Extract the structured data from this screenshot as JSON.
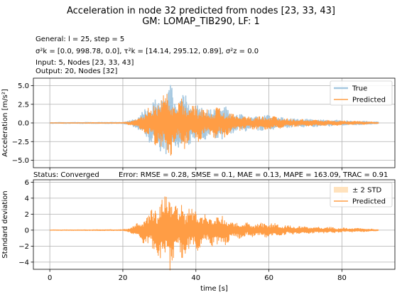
{
  "title": "Acceleration in node 32 predicted from nodes [23, 33, 43]",
  "subtitle": "GM: LOMAP_TIB290, LF: 1",
  "info": {
    "general": "General: l = 25, step = 5",
    "sigma": "σ²k = [0.0, 998.78, 0.0], τ²k = [14.14, 295.12, 0.89], σ²z = 0.0",
    "input": "Input: 5, Nodes [23, 33, 43]",
    "output": "Output: 20, Nodes [32]"
  },
  "status_left": "Status: Converged",
  "status_right": "Error: RMSE = 0.28, SMSE = 0.1, MAE = 0.13, MAPE = 163.09, TRAC = 0.91",
  "colors": {
    "true": "#a6c8e0",
    "predicted": "#ff9d45",
    "std": "#ffe2bd",
    "grid": "#b0b0b0"
  },
  "chart_data": [
    {
      "type": "line",
      "xlim": [
        -4.5,
        94.5
      ],
      "ylim": [
        -6.0,
        6.0
      ],
      "yticks": [
        -5.0,
        -2.5,
        0.0,
        2.5,
        5.0
      ],
      "yticklabels": [
        "−5.0",
        "−2.5",
        "0.0",
        "2.5",
        "5.0"
      ],
      "xticks": [
        0,
        20,
        40,
        60,
        80
      ],
      "xlabel": "",
      "ylabel": "Acceleration [m/s²]",
      "grid": true,
      "legend": "top-right",
      "series": [
        {
          "name": "True",
          "envelope": {
            "t": [
              0,
              20,
              22,
              24,
              26,
              28,
              30,
              32,
              33,
              34,
              35,
              36,
              38,
              40,
              42,
              44,
              46,
              48,
              50,
              55,
              60,
              65,
              70,
              75,
              80,
              85,
              90
            ],
            "amp": [
              0.05,
              0.08,
              0.3,
              0.9,
              2.0,
              3.0,
              4.3,
              4.8,
              5.4,
              4.0,
              3.2,
              4.4,
              3.3,
              3.0,
              2.4,
              2.1,
              2.7,
              2.3,
              1.4,
              1.0,
              1.1,
              0.7,
              0.55,
              0.45,
              0.35,
              0.25,
              0.12
            ]
          }
        },
        {
          "name": "Predicted",
          "envelope": {
            "t": [
              0,
              20,
              22,
              24,
              26,
              28,
              30,
              32,
              33,
              34,
              35,
              36,
              38,
              40,
              42,
              44,
              46,
              48,
              50,
              55,
              60,
              65,
              70,
              75,
              80,
              85,
              90
            ],
            "amp": [
              0.04,
              0.07,
              0.28,
              0.8,
              1.8,
              2.6,
              3.8,
              4.4,
              4.7,
              3.5,
              2.9,
              3.9,
              3.0,
              2.7,
              2.2,
              1.9,
              2.4,
              2.0,
              1.2,
              0.9,
              0.95,
              0.6,
              0.48,
              0.4,
              0.3,
              0.22,
              0.1
            ]
          }
        }
      ]
    },
    {
      "type": "line",
      "xlim": [
        -4.5,
        94.5
      ],
      "ylim": [
        -4.9,
        6.3
      ],
      "yticks": [
        -4,
        -2,
        0,
        2,
        4,
        6
      ],
      "yticklabels": [
        "−4",
        "−2",
        "0",
        "2",
        "4",
        "6"
      ],
      "xticks": [
        0,
        20,
        40,
        60,
        80
      ],
      "xticklabels": [
        "0",
        "20",
        "40",
        "60",
        "80"
      ],
      "xlabel": "time [s]",
      "ylabel": "Standard deviation",
      "grid": true,
      "legend": "top-right",
      "series": [
        {
          "name": "± 2 STD",
          "type": "band",
          "values": [
            0.0,
            0.0
          ]
        },
        {
          "name": "Predicted",
          "envelope": {
            "t": [
              0,
              20,
              22,
              24,
              26,
              28,
              30,
              32,
              33,
              34,
              35,
              36,
              38,
              40,
              42,
              44,
              46,
              48,
              50,
              55,
              60,
              65,
              70,
              75,
              80,
              85,
              90
            ],
            "amp": [
              0.04,
              0.07,
              0.3,
              0.9,
              1.8,
              3.0,
              4.0,
              4.5,
              5.9,
              3.6,
              2.9,
              3.9,
              3.0,
              2.7,
              2.2,
              1.9,
              2.4,
              2.0,
              1.2,
              0.9,
              0.95,
              0.6,
              0.48,
              0.4,
              0.3,
              0.22,
              0.1
            ]
          }
        }
      ]
    }
  ]
}
